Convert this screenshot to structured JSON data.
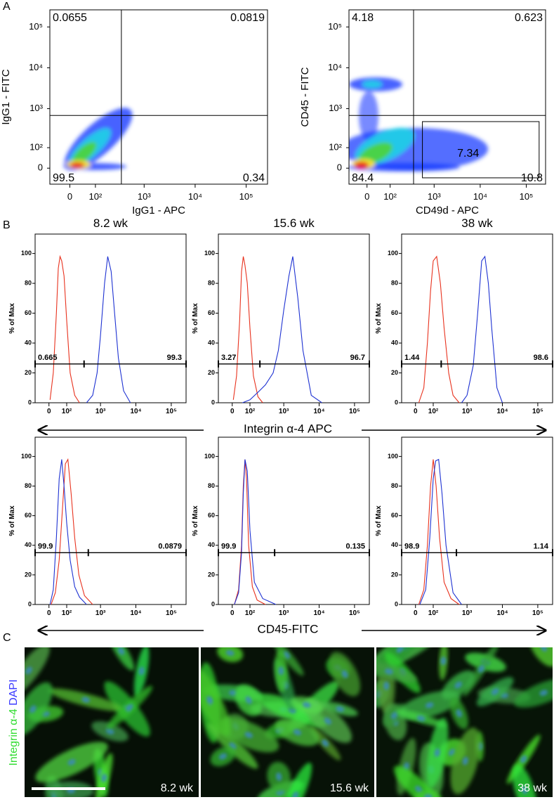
{
  "panel_labels": [
    "A",
    "B",
    "C"
  ],
  "shared_xlabels": [
    "Integrin α-4 APC",
    "CD45-FITC"
  ],
  "chart_data": [
    {
      "type": "density",
      "xlabel": "IgG1 - APC",
      "ylabel": "IgG1 - FITC",
      "xscale": "biexponential",
      "yscale": "biexponential",
      "xlim": [
        -72,
        262144
      ],
      "ylim": [
        -72,
        262144
      ],
      "xticks": [
        0,
        {
          "value": 100,
          "label": "10²"
        },
        {
          "value": 1000,
          "label": "10³"
        },
        {
          "value": 10000,
          "label": "10⁴"
        },
        {
          "value": 100000,
          "label": "10⁵"
        }
      ],
      "yticks": [
        0,
        {
          "value": 100,
          "label": "10²"
        },
        {
          "value": 1000,
          "label": "10³"
        },
        {
          "value": 10000,
          "label": "10⁴"
        },
        {
          "value": 100000,
          "label": "10⁵"
        }
      ],
      "quadrant": {
        "x": 355,
        "y": 680,
        "values": [
          0.0655,
          0.0819,
          99.5,
          0.34
        ]
      }
    },
    {
      "type": "density",
      "xlabel": "CD49d - APC",
      "ylabel": "CD45 - FITC",
      "xscale": "biexponential",
      "yscale": "biexponential",
      "xlim": [
        -72,
        262144
      ],
      "ylim": [
        -72,
        262144
      ],
      "xticks": [
        0,
        {
          "value": 100,
          "label": "10²"
        },
        {
          "value": 1000,
          "label": "10³"
        },
        {
          "value": 10000,
          "label": "10⁴"
        },
        {
          "value": 100000,
          "label": "10⁵"
        }
      ],
      "yticks": [
        0,
        {
          "value": 100,
          "label": "10²"
        },
        {
          "value": 1000,
          "label": "10³"
        },
        {
          "value": 10000,
          "label": "10⁴"
        },
        {
          "value": 100000,
          "label": "10⁵"
        }
      ],
      "quadrant": {
        "x": 355,
        "y": 680,
        "values": [
          4.18,
          0.623,
          84.4,
          10.8
        ]
      },
      "gate": {
        "x": [
          555,
          190000
        ],
        "y": [
          -40,
          480
        ],
        "value": 7.34
      }
    },
    {
      "type": "line",
      "title": "8.2 wk",
      "ylabel": "% of Max",
      "xscale": "biexponential",
      "xlim": [
        -72,
        262144
      ],
      "ylim": [
        0,
        113
      ],
      "xticks": [
        0,
        {
          "value": 100,
          "label": "10²"
        },
        {
          "value": 1000,
          "label": "10³"
        },
        {
          "value": 10000,
          "label": "10⁴"
        },
        {
          "value": 100000,
          "label": "10⁵"
        }
      ],
      "yticks": [
        0,
        20,
        40,
        60,
        80,
        100
      ],
      "series": [
        {
          "color": "#e8321e",
          "x": [
            5,
            20,
            35,
            45,
            55,
            65,
            80,
            100,
            130,
            180,
            250
          ],
          "values": [
            2,
            20,
            60,
            90,
            98,
            95,
            85,
            55,
            20,
            5,
            0
          ]
        },
        {
          "color": "#1e32d2",
          "x": [
            400,
            600,
            800,
            1000,
            1300,
            1600,
            2000,
            2500,
            3200,
            4500,
            7000
          ],
          "values": [
            0,
            5,
            20,
            45,
            80,
            98,
            88,
            60,
            30,
            8,
            0
          ]
        }
      ],
      "gate": {
        "y": 26,
        "bounds": [
          -72,
          340,
          262144
        ],
        "values": [
          0.665,
          99.3
        ]
      }
    },
    {
      "type": "line",
      "title": "15.6 wk",
      "ylabel": "% of Max",
      "xscale": "biexponential",
      "xlim": [
        -72,
        262144
      ],
      "ylim": [
        0,
        113
      ],
      "xticks": [
        0,
        {
          "value": 100,
          "label": "10²"
        },
        {
          "value": 1000,
          "label": "10³"
        },
        {
          "value": 10000,
          "label": "10⁴"
        },
        {
          "value": 100000,
          "label": "10⁵"
        }
      ],
      "yticks": [
        0,
        20,
        40,
        60,
        80,
        100
      ],
      "series": [
        {
          "color": "#e8321e",
          "x": [
            5,
            20,
            35,
            45,
            55,
            65,
            80,
            100,
            130,
            180,
            250
          ],
          "values": [
            2,
            18,
            55,
            88,
            98,
            92,
            80,
            50,
            18,
            4,
            0
          ]
        },
        {
          "color": "#1e32d2",
          "x": [
            50,
            100,
            200,
            300,
            500,
            700,
            1000,
            1400,
            1800,
            2500,
            3500,
            6000,
            12000
          ],
          "values": [
            0,
            2,
            8,
            12,
            20,
            35,
            62,
            85,
            98,
            70,
            35,
            5,
            0
          ]
        }
      ],
      "gate": {
        "y": 26,
        "bounds": [
          -72,
          206,
          262144
        ],
        "values": [
          3.27,
          96.7
        ]
      }
    },
    {
      "type": "line",
      "title": "38 wk",
      "ylabel": "% of Max",
      "xscale": "biexponential",
      "xlim": [
        -72,
        262144
      ],
      "ylim": [
        0,
        113
      ],
      "xticks": [
        0,
        {
          "value": 100,
          "label": "10²"
        },
        {
          "value": 1000,
          "label": "10³"
        },
        {
          "value": 10000,
          "label": "10⁴"
        },
        {
          "value": 100000,
          "label": "10⁵"
        }
      ],
      "yticks": [
        0,
        20,
        40,
        60,
        80,
        100
      ],
      "series": [
        {
          "color": "#e8321e",
          "x": [
            15,
            40,
            60,
            80,
            100,
            130,
            170,
            220,
            300,
            400,
            600
          ],
          "values": [
            0,
            10,
            40,
            75,
            95,
            98,
            80,
            50,
            20,
            5,
            0
          ]
        },
        {
          "color": "#1e32d2",
          "x": [
            700,
            1000,
            1500,
            2000,
            2600,
            3200,
            4000,
            5000,
            7000,
            10000
          ],
          "values": [
            0,
            5,
            25,
            60,
            95,
            98,
            80,
            50,
            10,
            0
          ]
        }
      ],
      "gate": {
        "y": 26,
        "bounds": [
          -72,
          180,
          262144
        ],
        "values": [
          1.44,
          98.6
        ]
      }
    },
    {
      "type": "line",
      "ylabel": "% of Max",
      "xscale": "biexponential",
      "xlim": [
        -72,
        262144
      ],
      "ylim": [
        0,
        113
      ],
      "xticks": [
        0,
        {
          "value": 100,
          "label": "10²"
        },
        {
          "value": 1000,
          "label": "10³"
        },
        {
          "value": 10000,
          "label": "10⁴"
        },
        {
          "value": 100000,
          "label": "10⁵"
        }
      ],
      "yticks": [
        0,
        20,
        40,
        60,
        80,
        100
      ],
      "series": [
        {
          "color": "#e8321e",
          "x": [
            10,
            30,
            50,
            70,
            90,
            110,
            140,
            180,
            240,
            350,
            600
          ],
          "values": [
            0,
            8,
            30,
            65,
            95,
            98,
            75,
            45,
            20,
            6,
            0
          ]
        },
        {
          "color": "#1e32d2",
          "x": [
            5,
            20,
            35,
            50,
            65,
            80,
            100,
            130,
            180,
            250,
            400
          ],
          "values": [
            0,
            10,
            45,
            85,
            98,
            80,
            55,
            30,
            12,
            5,
            0
          ]
        }
      ],
      "gate": {
        "y": 35,
        "bounds": [
          -72,
          450,
          262144
        ],
        "values": [
          99.9,
          0.0879
        ]
      }
    },
    {
      "type": "line",
      "ylabel": "% of Max",
      "xscale": "biexponential",
      "xlim": [
        -72,
        262144
      ],
      "ylim": [
        0,
        113
      ],
      "xticks": [
        0,
        {
          "value": 100,
          "label": "10²"
        },
        {
          "value": 1000,
          "label": "10³"
        },
        {
          "value": 10000,
          "label": "10⁴"
        },
        {
          "value": 100000,
          "label": "10⁵"
        }
      ],
      "yticks": [
        0,
        20,
        40,
        60,
        80,
        100
      ],
      "series": [
        {
          "color": "#e8321e",
          "x": [
            10,
            30,
            45,
            55,
            65,
            75,
            90,
            120,
            170,
            300
          ],
          "values": [
            0,
            10,
            40,
            80,
            98,
            85,
            40,
            12,
            3,
            0
          ]
        },
        {
          "color": "#1e32d2",
          "x": [
            10,
            30,
            45,
            55,
            65,
            80,
            100,
            140,
            250,
            600
          ],
          "values": [
            0,
            8,
            35,
            75,
            98,
            90,
            50,
            15,
            4,
            0
          ]
        }
      ],
      "gate": {
        "y": 35,
        "bounds": [
          -72,
          550,
          262144
        ],
        "values": [
          99.9,
          0.135
        ]
      }
    },
    {
      "type": "line",
      "ylabel": "% of Max",
      "xscale": "biexponential",
      "xlim": [
        -72,
        262144
      ],
      "ylim": [
        0,
        113
      ],
      "xticks": [
        0,
        {
          "value": 100,
          "label": "10²"
        },
        {
          "value": 1000,
          "label": "10³"
        },
        {
          "value": 10000,
          "label": "10⁴"
        },
        {
          "value": 100000,
          "label": "10⁵"
        }
      ],
      "yticks": [
        0,
        20,
        40,
        60,
        80,
        100
      ],
      "series": [
        {
          "color": "#e8321e",
          "x": [
            15,
            40,
            60,
            80,
            100,
            125,
            160,
            220,
            350,
            600
          ],
          "values": [
            0,
            10,
            40,
            80,
            98,
            80,
            45,
            15,
            4,
            0
          ]
        },
        {
          "color": "#1e32d2",
          "x": [
            20,
            50,
            75,
            100,
            120,
            150,
            190,
            250,
            400,
            700
          ],
          "values": [
            0,
            10,
            45,
            85,
            97,
            98,
            75,
            40,
            8,
            0
          ]
        }
      ],
      "gate": {
        "y": 35,
        "bounds": [
          -72,
          500,
          262144
        ],
        "values": [
          98.9,
          1.14
        ]
      }
    }
  ],
  "images": [
    {
      "label": "8.2 wk"
    },
    {
      "label": "15.6 wk"
    },
    {
      "label": "38 wk"
    }
  ],
  "image_ylabel": [
    {
      "text": "Integrin α-4",
      "color": "#33dd33"
    },
    {
      "text": "DAPI",
      "color": "#3a3aff"
    }
  ]
}
